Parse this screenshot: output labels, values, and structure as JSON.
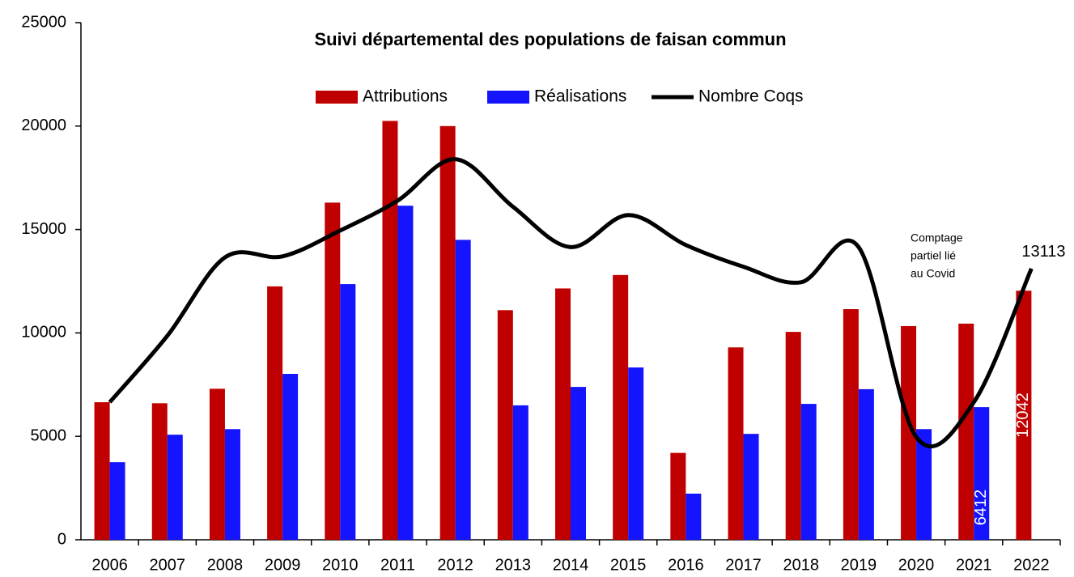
{
  "chart_data": {
    "type": "bar_line",
    "title": "Suivi départemental des populations de faisan commun",
    "categories": [
      "2006",
      "2007",
      "2008",
      "2009",
      "2010",
      "2011",
      "2012",
      "2013",
      "2014",
      "2015",
      "2016",
      "2017",
      "2018",
      "2019",
      "2020",
      "2021",
      "2022"
    ],
    "series": [
      {
        "name": "Attributions",
        "type": "bar",
        "color": "#c00000",
        "values": [
          6650,
          6600,
          7300,
          12250,
          16300,
          20250,
          20000,
          11100,
          12150,
          12800,
          4200,
          9300,
          10050,
          11150,
          10330,
          10450,
          12042
        ],
        "value_labels": [
          null,
          null,
          null,
          null,
          null,
          null,
          null,
          null,
          null,
          null,
          null,
          null,
          null,
          null,
          null,
          null,
          "12042"
        ]
      },
      {
        "name": "Réalisations",
        "type": "bar",
        "color": "#1414ff",
        "values": [
          3750,
          5080,
          5350,
          8020,
          12360,
          16150,
          14500,
          6500,
          7390,
          8330,
          2230,
          5120,
          6570,
          7280,
          5350,
          6412,
          null
        ],
        "value_labels": [
          null,
          null,
          null,
          null,
          null,
          null,
          null,
          null,
          null,
          null,
          null,
          null,
          null,
          null,
          null,
          "6412",
          null
        ]
      },
      {
        "name": "Nombre Coqs",
        "type": "line",
        "color": "#000000",
        "values": [
          6650,
          9860,
          13650,
          13700,
          14950,
          16400,
          18400,
          16100,
          14150,
          15700,
          14250,
          13200,
          12450,
          14150,
          4970,
          6650,
          13113
        ],
        "value_labels": [
          null,
          null,
          null,
          null,
          null,
          null,
          null,
          null,
          null,
          null,
          null,
          null,
          null,
          null,
          null,
          null,
          "13113"
        ]
      }
    ],
    "annotation": [
      "Comptage",
      "partiel lié",
      "au Covid"
    ],
    "ylim": [
      0,
      25000
    ],
    "yticks": [
      0,
      5000,
      10000,
      15000,
      20000,
      25000
    ],
    "grid": false,
    "legend": "top"
  }
}
